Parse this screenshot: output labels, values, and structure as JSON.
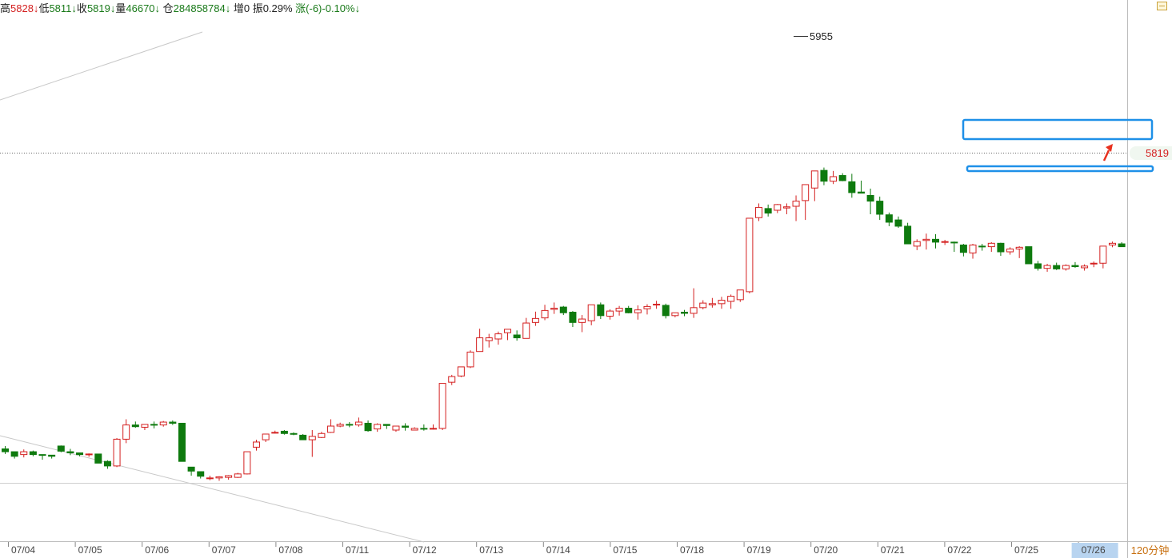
{
  "info_bar": [
    {
      "text": "高",
      "cls": "blk"
    },
    {
      "text": "5828↓",
      "cls": "up"
    },
    {
      "text": "低",
      "cls": "blk"
    },
    {
      "text": "5811↓",
      "cls": "dn"
    },
    {
      "text": "收",
      "cls": "blk"
    },
    {
      "text": "5819↓",
      "cls": "dn"
    },
    {
      "text": "量",
      "cls": "blk"
    },
    {
      "text": "46670↓",
      "cls": "dn"
    },
    {
      "text": " 仓",
      "cls": "blk"
    },
    {
      "text": "284858784↓",
      "cls": "dn"
    },
    {
      "text": " 增0 振0.29% ",
      "cls": "blk"
    },
    {
      "text": "涨(-6)-0.10%↓",
      "cls": "dn"
    }
  ],
  "period": "120分钟",
  "colors": {
    "up": "#d42020",
    "down": "#0e7a0e",
    "highlight": "#1e90e8",
    "grid": "#cccccc"
  },
  "chart_data": {
    "type": "candlestick",
    "current_price": 5819,
    "current_price_label": "5819",
    "high_label": "5955",
    "y_range": [
      5210,
      5975
    ],
    "x_labels": [
      "07/04",
      "07/05",
      "07/06",
      "07/07",
      "07/08",
      "07/11",
      "07/12",
      "07/13",
      "07/14",
      "07/15",
      "07/18",
      "07/19",
      "07/20",
      "07/21",
      "07/22",
      "07/25",
      "07/26"
    ],
    "candles": [
      [
        5250,
        5255,
        5241,
        5245
      ],
      [
        5245,
        5245,
        5233,
        5237
      ],
      [
        5240,
        5249,
        5235,
        5245
      ],
      [
        5245,
        5247,
        5237,
        5240
      ],
      [
        5240,
        5240,
        5231,
        5239
      ],
      [
        5239,
        5239,
        5233,
        5237
      ],
      [
        5255,
        5256,
        5244,
        5246
      ],
      [
        5245,
        5250,
        5239,
        5243
      ],
      [
        5243,
        5243,
        5237,
        5240
      ],
      [
        5240,
        5242,
        5236,
        5241
      ],
      [
        5241,
        5241,
        5225,
        5225
      ],
      [
        5228,
        5230,
        5215,
        5220
      ],
      [
        5220,
        5269,
        5218,
        5267
      ],
      [
        5267,
        5302,
        5260,
        5292
      ],
      [
        5292,
        5298,
        5287,
        5289
      ],
      [
        5288,
        5293,
        5283,
        5293
      ],
      [
        5293,
        5298,
        5286,
        5292
      ],
      [
        5292,
        5299,
        5289,
        5297
      ],
      [
        5297,
        5300,
        5292,
        5295
      ],
      [
        5295,
        5295,
        5228,
        5228
      ],
      [
        5218,
        5218,
        5203,
        5211
      ],
      [
        5210,
        5210,
        5198,
        5202
      ],
      [
        5199,
        5203,
        5195,
        5199
      ],
      [
        5199,
        5202,
        5194,
        5201
      ],
      [
        5200,
        5204,
        5196,
        5203
      ],
      [
        5200,
        5208,
        5199,
        5206
      ],
      [
        5206,
        5244,
        5205,
        5245
      ],
      [
        5253,
        5266,
        5247,
        5262
      ],
      [
        5266,
        5276,
        5262,
        5276
      ],
      [
        5278,
        5282,
        5277,
        5279
      ],
      [
        5281,
        5283,
        5275,
        5277
      ],
      [
        5277,
        5279,
        5274,
        5276
      ],
      [
        5274,
        5276,
        5266,
        5266
      ],
      [
        5266,
        5283,
        5236,
        5272
      ],
      [
        5270,
        5280,
        5269,
        5277
      ],
      [
        5279,
        5302,
        5278,
        5290
      ],
      [
        5290,
        5296,
        5288,
        5293
      ],
      [
        5293,
        5297,
        5288,
        5292
      ],
      [
        5292,
        5305,
        5289,
        5297
      ],
      [
        5295,
        5300,
        5280,
        5282
      ],
      [
        5285,
        5295,
        5280,
        5293
      ],
      [
        5293,
        5291,
        5285,
        5291
      ],
      [
        5283,
        5289,
        5280,
        5290
      ],
      [
        5290,
        5295,
        5282,
        5288
      ],
      [
        5283,
        5288,
        5283,
        5286
      ],
      [
        5286,
        5293,
        5282,
        5285
      ],
      [
        5285,
        5293,
        5284,
        5286
      ],
      [
        5286,
        5365,
        5283,
        5365
      ],
      [
        5367,
        5380,
        5362,
        5377
      ],
      [
        5378,
        5394,
        5376,
        5394
      ],
      [
        5394,
        5423,
        5392,
        5420
      ],
      [
        5421,
        5461,
        5421,
        5445
      ],
      [
        5440,
        5452,
        5428,
        5445
      ],
      [
        5443,
        5456,
        5433,
        5452
      ],
      [
        5454,
        5459,
        5441,
        5460
      ],
      [
        5450,
        5458,
        5440,
        5445
      ],
      [
        5444,
        5480,
        5444,
        5471
      ],
      [
        5472,
        5491,
        5466,
        5479
      ],
      [
        5480,
        5503,
        5476,
        5493
      ],
      [
        5495,
        5507,
        5487,
        5497
      ],
      [
        5499,
        5501,
        5485,
        5489
      ],
      [
        5490,
        5492,
        5464,
        5472
      ],
      [
        5472,
        5485,
        5455,
        5478
      ],
      [
        5475,
        5499,
        5467,
        5503
      ],
      [
        5503,
        5507,
        5478,
        5484
      ],
      [
        5483,
        5495,
        5477,
        5492
      ],
      [
        5492,
        5501,
        5484,
        5497
      ],
      [
        5497,
        5501,
        5488,
        5489
      ],
      [
        5489,
        5502,
        5477,
        5494
      ],
      [
        5496,
        5504,
        5486,
        5500
      ],
      [
        5504,
        5510,
        5496,
        5504
      ],
      [
        5502,
        5505,
        5479,
        5484
      ],
      [
        5484,
        5489,
        5481,
        5489
      ],
      [
        5490,
        5494,
        5483,
        5488
      ],
      [
        5488,
        5532,
        5480,
        5498
      ],
      [
        5498,
        5511,
        5495,
        5506
      ],
      [
        5503,
        5515,
        5498,
        5505
      ],
      [
        5505,
        5517,
        5496,
        5511
      ],
      [
        5509,
        5521,
        5496,
        5518
      ],
      [
        5512,
        5528,
        5508,
        5529
      ],
      [
        5526,
        5648,
        5523,
        5655
      ],
      [
        5656,
        5681,
        5650,
        5674
      ],
      [
        5672,
        5679,
        5658,
        5664
      ],
      [
        5669,
        5680,
        5664,
        5679
      ],
      [
        5673,
        5681,
        5662,
        5675
      ],
      [
        5676,
        5695,
        5650,
        5685
      ],
      [
        5686,
        5708,
        5652,
        5714
      ],
      [
        5708,
        5738,
        5685,
        5738
      ],
      [
        5739,
        5744,
        5713,
        5720
      ],
      [
        5720,
        5738,
        5715,
        5728
      ],
      [
        5730,
        5734,
        5720,
        5721
      ],
      [
        5719,
        5733,
        5691,
        5700
      ],
      [
        5701,
        5721,
        5701,
        5699
      ],
      [
        5695,
        5707,
        5662,
        5685
      ],
      [
        5685,
        5693,
        5652,
        5662
      ],
      [
        5661,
        5665,
        5641,
        5648
      ],
      [
        5652,
        5658,
        5638,
        5641
      ],
      [
        5641,
        5647,
        5610,
        5610
      ],
      [
        5606,
        5618,
        5599,
        5614
      ],
      [
        5616,
        5628,
        5600,
        5618
      ],
      [
        5618,
        5627,
        5602,
        5613
      ],
      [
        5614,
        5617,
        5608,
        5614
      ],
      [
        5613,
        5614,
        5596,
        5612
      ],
      [
        5608,
        5610,
        5588,
        5595
      ],
      [
        5594,
        5610,
        5584,
        5608
      ],
      [
        5606,
        5610,
        5598,
        5605
      ],
      [
        5605,
        5613,
        5596,
        5611
      ],
      [
        5611,
        5612,
        5589,
        5596
      ],
      [
        5596,
        5604,
        5591,
        5601
      ],
      [
        5601,
        5606,
        5585,
        5604
      ],
      [
        5605,
        5600,
        5575,
        5575
      ],
      [
        5575,
        5580,
        5563,
        5567
      ],
      [
        5567,
        5575,
        5561,
        5572
      ],
      [
        5572,
        5577,
        5564,
        5566
      ],
      [
        5566,
        5574,
        5563,
        5572
      ],
      [
        5572,
        5578,
        5568,
        5570
      ],
      [
        5568,
        5574,
        5563,
        5571
      ],
      [
        5575,
        5579,
        5569,
        5576
      ],
      [
        5576,
        5603,
        5567,
        5606
      ],
      [
        5608,
        5614,
        5604,
        5611
      ],
      [
        5610,
        5613,
        5606,
        5605
      ]
    ]
  }
}
